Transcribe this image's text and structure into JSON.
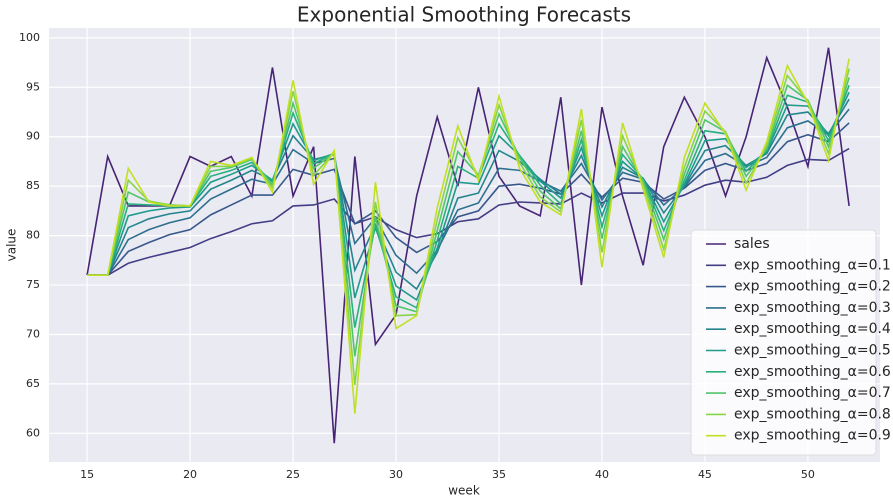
{
  "chart_data": {
    "type": "line",
    "title": "Exponential Smoothing Forecasts",
    "x_label": "week",
    "y_label": "value",
    "x": [
      15,
      16,
      17,
      18,
      19,
      20,
      21,
      22,
      23,
      24,
      25,
      26,
      27,
      28,
      29,
      30,
      31,
      32,
      33,
      34,
      35,
      36,
      37,
      38,
      39,
      40,
      41,
      42,
      43,
      44,
      45,
      46,
      47,
      48,
      49,
      50,
      51,
      52
    ],
    "xlim": [
      13.15,
      53.5
    ],
    "xticks": [
      15,
      20,
      25,
      30,
      35,
      40,
      45,
      50
    ],
    "ylim": [
      57.1,
      101.0
    ],
    "yticks": [
      60,
      65,
      70,
      75,
      80,
      85,
      90,
      95,
      100
    ],
    "grid": true,
    "legend_position": "lower right",
    "series": [
      {
        "name": "sales",
        "color": "#482475",
        "values": [
          76,
          88,
          83,
          83,
          83,
          88,
          87,
          88,
          84,
          97,
          84,
          89,
          59,
          88,
          69,
          72,
          84,
          92,
          85,
          95,
          86,
          83,
          82,
          94,
          75,
          93,
          84,
          77,
          89,
          94,
          90,
          84,
          90,
          98,
          93,
          87,
          99,
          83
        ]
      },
      {
        "name": "exp_smoothing_α=0.1",
        "color": "#433e85",
        "values": [
          76,
          76,
          77.2,
          77.8,
          78.3,
          78.8,
          79.7,
          80.4,
          81.2,
          81.5,
          83.0,
          83.1,
          83.7,
          81.2,
          81.9,
          80.6,
          79.8,
          80.2,
          81.4,
          81.7,
          83.1,
          83.4,
          83.3,
          83.2,
          84.3,
          83.3,
          84.3,
          84.3,
          83.5,
          84.1,
          85.1,
          85.6,
          85.4,
          85.9,
          87.1,
          87.7,
          87.6,
          88.8
        ]
      },
      {
        "name": "exp_smoothing_α=0.2",
        "color": "#38588c",
        "values": [
          76,
          76,
          78.4,
          79.3,
          80.1,
          80.6,
          82.1,
          83.1,
          84.1,
          84.1,
          86.7,
          86.1,
          86.7,
          81.2,
          82.5,
          79.8,
          78.3,
          79.4,
          81.9,
          82.5,
          85.0,
          85.2,
          84.8,
          84.2,
          86.2,
          83.9,
          85.8,
          85.4,
          83.7,
          84.8,
          86.6,
          87.3,
          86.6,
          87.3,
          89.5,
          90.2,
          89.5,
          91.4
        ]
      },
      {
        "name": "exp_smoothing_α=0.3",
        "color": "#2d708e",
        "values": [
          76,
          76,
          79.6,
          80.6,
          81.3,
          81.8,
          83.7,
          84.7,
          85.7,
          85.2,
          88.7,
          87.3,
          87.8,
          79.2,
          81.8,
          78.0,
          76.2,
          78.5,
          82.6,
          83.3,
          86.8,
          86.6,
          85.5,
          84.5,
          87.3,
          83.6,
          86.4,
          85.7,
          83.1,
          84.9,
          87.6,
          88.3,
          87.0,
          87.9,
          90.9,
          91.6,
          90.2,
          92.8
        ]
      },
      {
        "name": "exp_smoothing_α=0.4",
        "color": "#25858e",
        "values": [
          76,
          76,
          80.8,
          81.7,
          82.2,
          82.5,
          84.7,
          85.6,
          86.6,
          85.6,
          90.1,
          87.7,
          88.2,
          76.5,
          81.1,
          76.3,
          74.6,
          78.3,
          83.8,
          84.3,
          88.6,
          87.5,
          85.7,
          84.2,
          88.1,
          82.9,
          86.9,
          85.8,
          82.3,
          85.0,
          88.6,
          89.1,
          87.1,
          88.3,
          92.2,
          92.5,
          90.3,
          93.8
        ]
      },
      {
        "name": "exp_smoothing_α=0.5",
        "color": "#1e9b8a",
        "values": [
          76,
          76,
          82.0,
          82.5,
          82.8,
          82.9,
          85.4,
          86.2,
          87.1,
          85.6,
          91.3,
          87.6,
          88.3,
          73.7,
          80.8,
          74.9,
          73.5,
          78.7,
          85.4,
          85.2,
          90.1,
          88.1,
          85.5,
          83.8,
          88.9,
          82.0,
          87.5,
          85.7,
          81.4,
          85.2,
          89.6,
          89.8,
          86.9,
          88.5,
          93.2,
          93.1,
          90.1,
          94.5
        ]
      },
      {
        "name": "exp_smoothing_α=0.6",
        "color": "#2ab07f",
        "values": [
          76,
          76,
          83.2,
          83.1,
          83.0,
          83.0,
          86.0,
          86.6,
          87.4,
          85.4,
          92.4,
          87.3,
          88.3,
          70.7,
          81.1,
          73.8,
          72.7,
          79.5,
          87.0,
          85.8,
          91.3,
          88.1,
          85.1,
          83.2,
          89.7,
          80.9,
          88.2,
          85.7,
          80.5,
          85.6,
          90.6,
          90.3,
          86.5,
          88.6,
          94.2,
          93.5,
          89.6,
          95.2
        ]
      },
      {
        "name": "exp_smoothing_α=0.7",
        "color": "#52c569",
        "values": [
          76,
          76,
          84.4,
          83.4,
          83.1,
          83.0,
          86.5,
          86.9,
          87.7,
          85.1,
          93.4,
          86.8,
          88.4,
          67.8,
          81.9,
          72.9,
          72.3,
          80.5,
          88.5,
          86.1,
          92.3,
          87.9,
          84.5,
          82.7,
          90.6,
          79.7,
          89.0,
          85.5,
          79.6,
          86.2,
          91.7,
          90.5,
          86.0,
          88.8,
          95.2,
          93.7,
          89.0,
          96.0
        ]
      },
      {
        "name": "exp_smoothing_α=0.8",
        "color": "#86d549",
        "values": [
          76,
          76,
          85.6,
          83.5,
          83.1,
          83.0,
          87.0,
          87.0,
          87.8,
          84.8,
          94.6,
          86.1,
          88.4,
          64.9,
          83.4,
          71.9,
          72.0,
          81.6,
          89.9,
          86.0,
          93.2,
          87.4,
          83.9,
          82.4,
          91.7,
          78.3,
          90.1,
          85.2,
          78.6,
          86.9,
          92.6,
          90.5,
          85.3,
          89.1,
          96.2,
          93.6,
          88.3,
          96.9
        ]
      },
      {
        "name": "exp_smoothing_α=0.9",
        "color": "#c2df23",
        "values": [
          76,
          76,
          86.8,
          83.4,
          83.0,
          83.0,
          87.5,
          87.1,
          87.9,
          84.4,
          95.7,
          85.2,
          88.6,
          62.0,
          85.4,
          70.6,
          71.9,
          82.8,
          91.1,
          85.6,
          94.1,
          86.8,
          83.4,
          82.1,
          92.8,
          76.8,
          91.4,
          84.7,
          77.8,
          87.9,
          93.4,
          90.3,
          84.6,
          89.5,
          97.2,
          93.4,
          87.6,
          97.9
        ]
      }
    ]
  }
}
